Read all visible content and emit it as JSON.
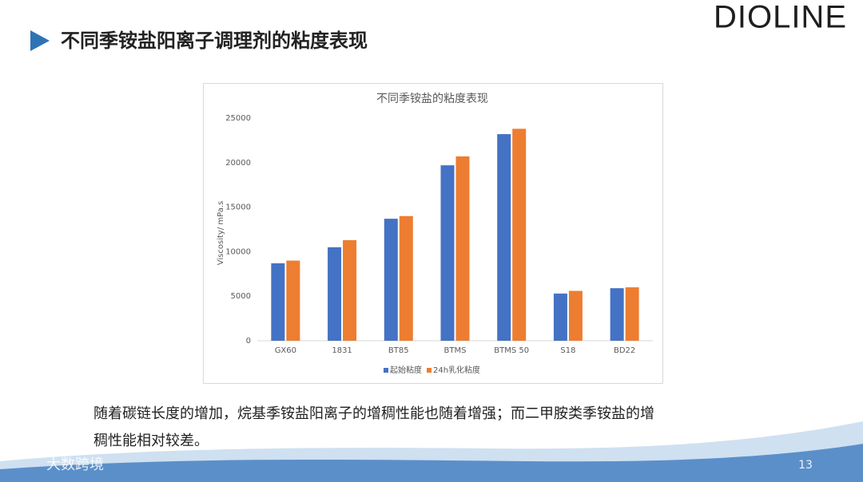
{
  "header": {
    "title": "不同季铵盐阳离子调理剂的粘度表现",
    "logo": "DIOLINE"
  },
  "chart_data": {
    "type": "bar",
    "title": "不同季铵盐的粘度表现",
    "y_label": "Viscosity/ mPa.s",
    "categories": [
      "GX60",
      "1831",
      "BT85",
      "BTMS",
      "BTMS 50",
      "S18",
      "BD22"
    ],
    "series": [
      {
        "name": "起始粘度",
        "color": "#4472c4",
        "values": [
          8700,
          10500,
          13700,
          19700,
          23200,
          5300,
          5900
        ]
      },
      {
        "name": "24h乳化粘度",
        "color": "#ed7d31",
        "values": [
          9000,
          11300,
          14000,
          20700,
          23800,
          5600,
          6000
        ]
      }
    ],
    "ylim": [
      0,
      25000
    ],
    "yticks": [
      0,
      5000,
      10000,
      15000,
      20000,
      25000
    ],
    "grid": false,
    "legend": "bottom"
  },
  "body": {
    "lines": [
      "随着碳链长度的增加，烷基季铵盐阳离子的增稠性能也随着增强；而二甲胺类季铵盐的增",
      "稠性能相对较差。"
    ]
  },
  "footer": {
    "page_number": "13",
    "watermark": "大数跨境"
  }
}
